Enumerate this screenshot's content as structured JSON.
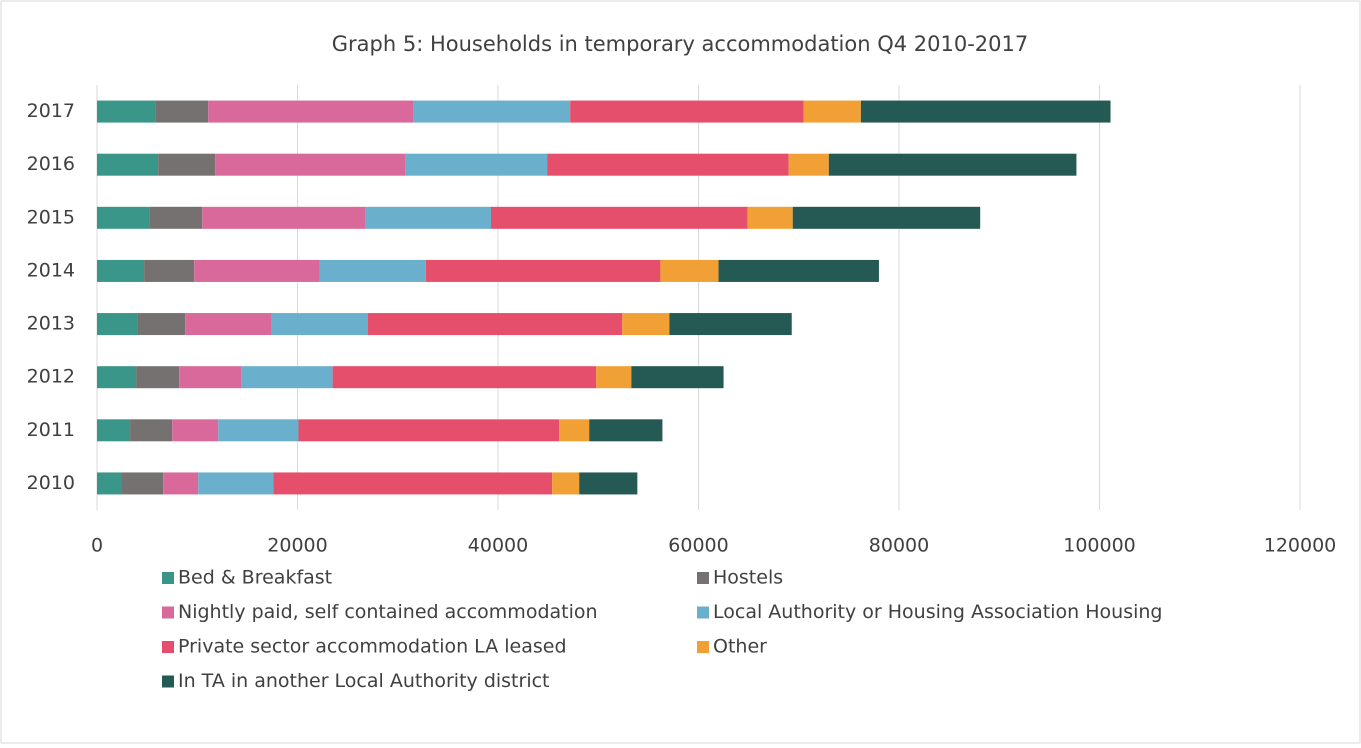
{
  "chart_data": {
    "type": "stacked-bar-horizontal",
    "title": "Graph 5: Households in temporary accommodation Q4 2010-2017",
    "categories": [
      "2010",
      "2011",
      "2012",
      "2013",
      "2014",
      "2015",
      "2016",
      "2017"
    ],
    "series": [
      {
        "name": "Bed & Breakfast",
        "color": "#3a9688",
        "values": [
          2400,
          3300,
          3900,
          4000,
          4700,
          5200,
          6100,
          5800
        ]
      },
      {
        "name": "Hostels",
        "color": "#767171",
        "values": [
          4200,
          4200,
          4300,
          4800,
          5000,
          5300,
          5700,
          5300
        ]
      },
      {
        "name": "Nightly paid, self contained accommodation",
        "color": "#d8699a",
        "values": [
          3500,
          4600,
          6200,
          8600,
          12500,
          16300,
          19000,
          20500
        ]
      },
      {
        "name": "Local Authority or Housing Association Housing",
        "color": "#6ab0cc",
        "values": [
          7500,
          8000,
          9100,
          9600,
          10600,
          12500,
          14100,
          15600
        ]
      },
      {
        "name": "Private sector accommodation LA leased",
        "color": "#e64f6c",
        "values": [
          27800,
          26000,
          26300,
          25400,
          23400,
          25600,
          24100,
          23300
        ]
      },
      {
        "name": "Other",
        "color": "#f0a035",
        "values": [
          2700,
          3000,
          3500,
          4700,
          5800,
          4500,
          4000,
          5700
        ]
      },
      {
        "name": "In TA in another Local Authority district",
        "color": "#245a53",
        "values": [
          5800,
          7300,
          9200,
          12200,
          16000,
          18700,
          24700,
          24900
        ]
      }
    ],
    "xlim": [
      0,
      120000
    ],
    "xticks": [
      0,
      20000,
      40000,
      60000,
      80000,
      100000,
      120000
    ],
    "grid": true
  }
}
